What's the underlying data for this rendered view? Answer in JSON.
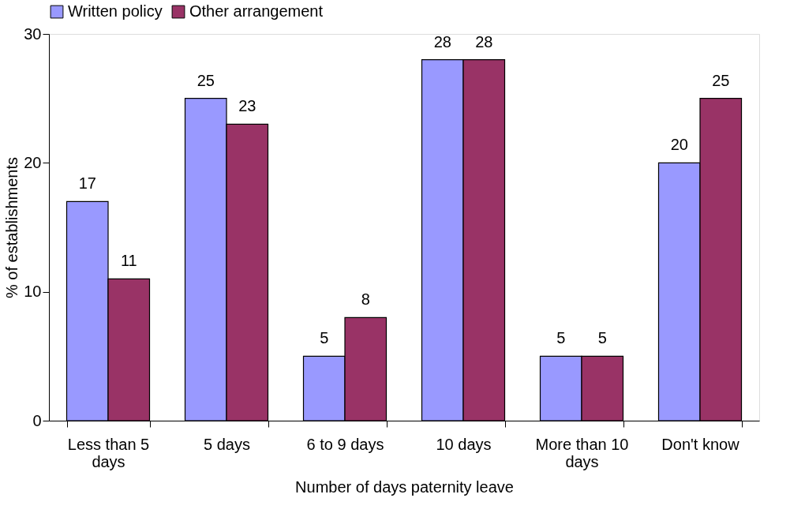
{
  "chart_data": {
    "type": "bar",
    "xlabel": "Number of days paternity leave",
    "ylabel": "% of establishments",
    "categories": [
      "Less than 5 days",
      "5 days",
      "6 to 9 days",
      "10 days",
      "More than 10 days",
      "Don't know"
    ],
    "series": [
      {
        "name": "Written policy",
        "color": "#9999ff",
        "values": [
          17,
          25,
          5,
          28,
          5,
          20
        ]
      },
      {
        "name": "Other arrangement",
        "color": "#993366",
        "values": [
          11,
          23,
          8,
          28,
          5,
          25
        ]
      }
    ],
    "ylim": [
      0,
      30
    ],
    "yticks": [
      0,
      10,
      20,
      30
    ],
    "grid": false,
    "legend": "top",
    "data_labels": true
  }
}
